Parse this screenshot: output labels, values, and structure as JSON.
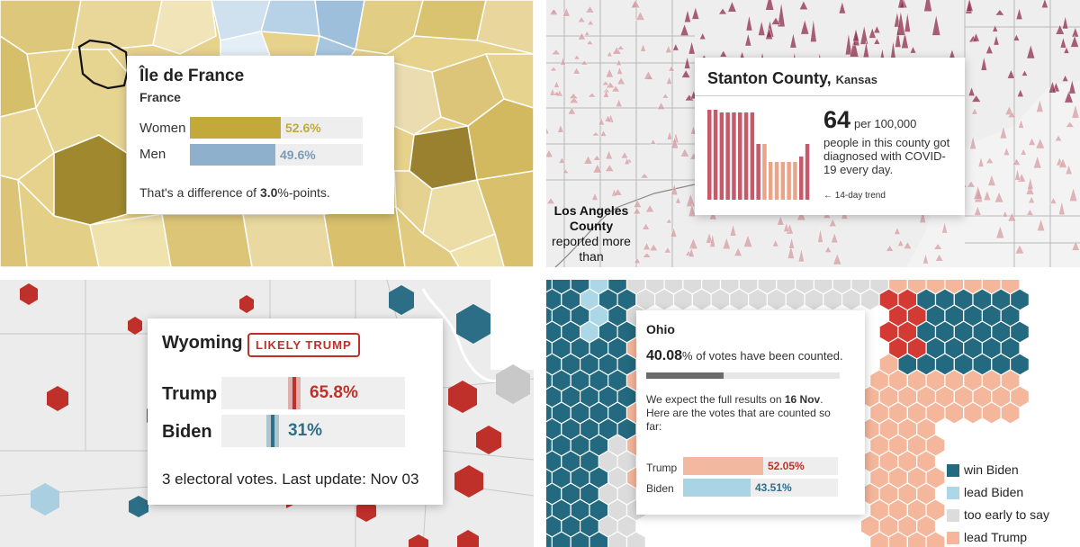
{
  "panel1": {
    "region": "Île de France",
    "country": "France",
    "rows": [
      {
        "label": "Women",
        "value": 52.6,
        "value_label": "52.6%",
        "color": "#c2a93a",
        "text_color": "#c2a93a"
      },
      {
        "label": "Men",
        "value": 49.6,
        "value_label": "49.6%",
        "color": "#8fb0cc",
        "text_color": "#7a9bb8"
      }
    ],
    "footer_prefix": "That's a difference of ",
    "footer_value": "3.0",
    "footer_suffix": "%-points."
  },
  "panel2": {
    "county": "Stanton County,",
    "state": "Kansas",
    "big_number": "64",
    "per_label": "per 100,000",
    "description": "people in this county got diagnosed with COVID-19 every day.",
    "trend_label": "← 14-day trend",
    "trend_values": [
      100,
      100,
      97,
      97,
      97,
      97,
      97,
      97,
      62,
      62,
      42,
      42,
      42,
      42,
      42,
      48,
      62
    ],
    "caption_bold": "Los Angeles County",
    "caption_text": "reported more than",
    "colors": {
      "dark": "#c45a6a",
      "light": "#e8a588"
    }
  },
  "panel3": {
    "state": "Wyoming",
    "badge": "LIKELY TRUMP",
    "candidates": [
      {
        "name": "Trump",
        "value": 65.8,
        "value_label": "65.8%",
        "color": "#c0302b"
      },
      {
        "name": "Biden",
        "value": 31,
        "value_label": "31%",
        "color": "#2e6f8a"
      }
    ],
    "footer": "3 electoral votes. Last update: Nov 03"
  },
  "panel4": {
    "state": "Ohio",
    "counted_value": "40.08",
    "counted_text": "% of votes have been counted.",
    "counted_fraction": 0.4008,
    "expect_prefix": "We expect the full results on ",
    "expect_date": "16 Nov",
    "expect_suffix": ". Here are the votes that are counted so far:",
    "candidates": [
      {
        "name": "Trump",
        "value": 52.05,
        "value_label": "52.05%",
        "color": "#f2b8a0",
        "text_color": "#c0302b"
      },
      {
        "name": "Biden",
        "value": 43.51,
        "value_label": "43.51%",
        "color": "#a8d4e4",
        "text_color": "#2e6f8a"
      }
    ],
    "legend": [
      {
        "label": "win Biden",
        "color": "#23697f"
      },
      {
        "label": "lead Biden",
        "color": "#acd7e6"
      },
      {
        "label": "too early to say",
        "color": "#dcdcdc"
      },
      {
        "label": "lead Trump",
        "color": "#f4b79c"
      }
    ]
  }
}
